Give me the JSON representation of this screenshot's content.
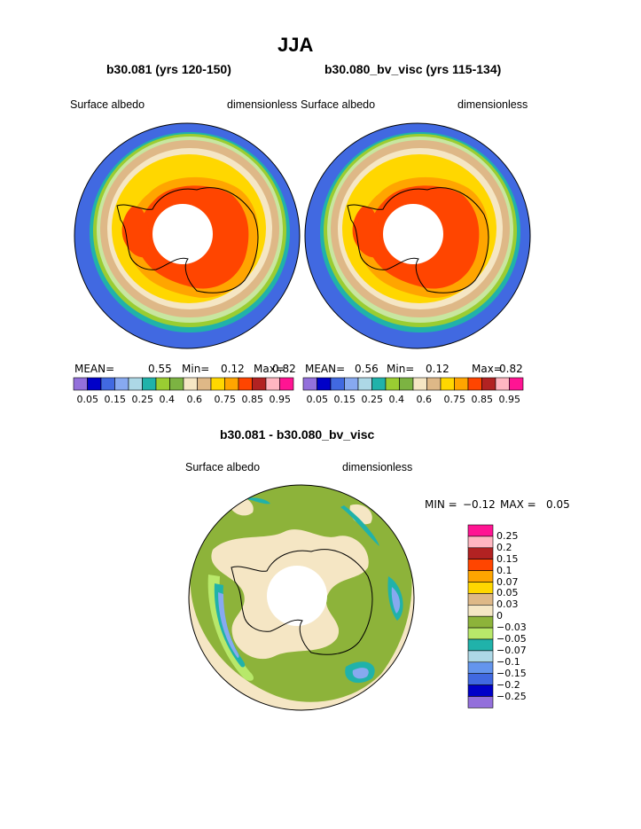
{
  "figure": {
    "title": "JJA",
    "left_panel_title": "b30.081 (yrs 120-150)",
    "right_panel_title": "b30.080_bv_visc (yrs 115-134)",
    "diff_title": "b30.081 - b30.080_bv_visc"
  },
  "chart_data": [
    {
      "type": "heatmap",
      "title": "b30.081 (yrs 120-150)",
      "variable": "Surface albedo",
      "units": "dimensionless",
      "stats": {
        "mean_label": "MEAN=",
        "mean": "0.55",
        "min_label": "Min=",
        "min": "0.12",
        "max_label": "Max=",
        "max": "0.82"
      },
      "colorbar_levels": [
        "0.05",
        "0.15",
        "0.25",
        "0.4",
        "0.6",
        "0.75",
        "0.85",
        "0.95"
      ],
      "colorbar_colors": [
        "#9370db",
        "#0000c8",
        "#4169e1",
        "#87a9f0",
        "#add8e6",
        "#20b2aa",
        "#9acd32",
        "#7cb342",
        "#f5e6c4",
        "#deb887",
        "#ffd700",
        "#ffa500",
        "#ff4500",
        "#b22222",
        "#ffb6c1",
        "#ff1493"
      ]
    },
    {
      "type": "heatmap",
      "title": "b30.080_bv_visc (yrs 115-134)",
      "variable": "Surface albedo",
      "units": "dimensionless",
      "stats": {
        "mean_label": "MEAN=",
        "mean": "0.56",
        "min_label": "Min=",
        "min": "0.12",
        "max_label": "Max=",
        "max": "0.82"
      },
      "colorbar_levels": [
        "0.05",
        "0.15",
        "0.25",
        "0.4",
        "0.6",
        "0.75",
        "0.85",
        "0.95"
      ],
      "colorbar_colors": [
        "#9370db",
        "#0000c8",
        "#4169e1",
        "#87a9f0",
        "#add8e6",
        "#20b2aa",
        "#9acd32",
        "#7cb342",
        "#f5e6c4",
        "#deb887",
        "#ffd700",
        "#ffa500",
        "#ff4500",
        "#b22222",
        "#ffb6c1",
        "#ff1493"
      ]
    },
    {
      "type": "heatmap",
      "title": "b30.081 - b30.080_bv_visc",
      "variable": "Surface albedo",
      "units": "dimensionless",
      "stats": {
        "min_label": "MIN =",
        "min": "−0.12",
        "max_label": "MAX =",
        "max": "0.05"
      },
      "colorbar_levels": [
        "0.25",
        "0.2",
        "0.15",
        "0.1",
        "0.07",
        "0.05",
        "0.03",
        "0",
        "−0.03",
        "−0.05",
        "−0.07",
        "−0.1",
        "−0.15",
        "−0.2",
        "−0.25"
      ],
      "colorbar_colors": [
        "#ff1493",
        "#ffb6c1",
        "#b22222",
        "#ff4500",
        "#ffa500",
        "#ffd700",
        "#deb887",
        "#f5e6c4",
        "#8db33a",
        "#b8e86a",
        "#20b2aa",
        "#add8e6",
        "#6495ed",
        "#4169e1",
        "#0000c8",
        "#9370db"
      ]
    }
  ]
}
